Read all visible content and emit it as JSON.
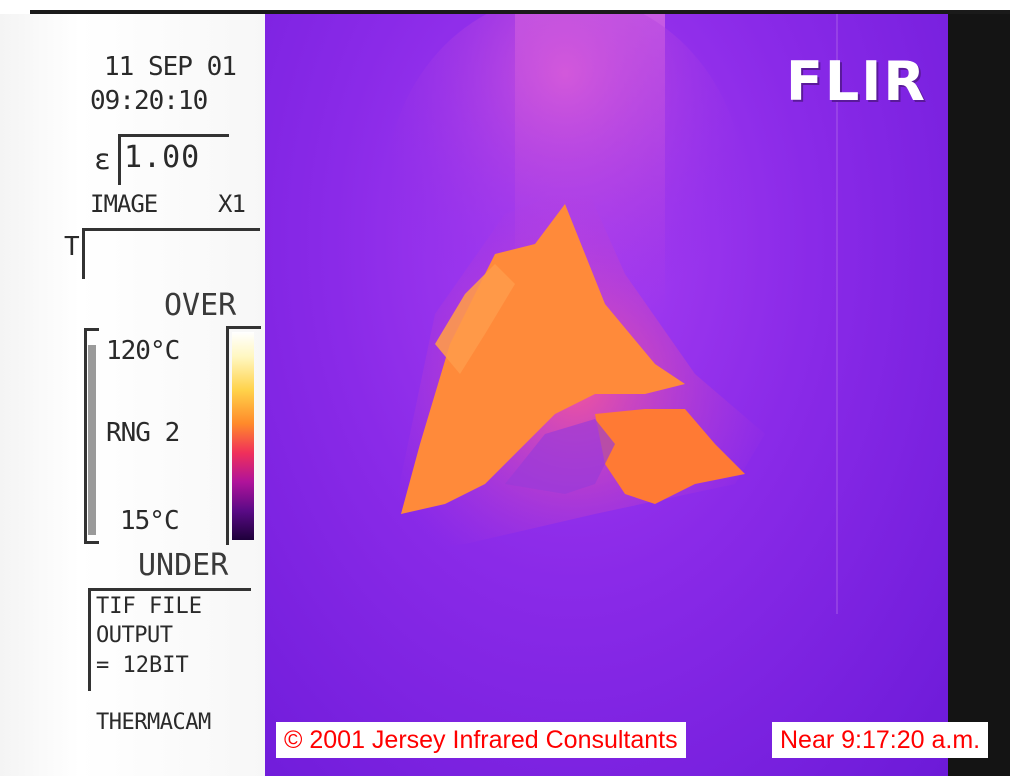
{
  "overlay": {
    "date": "11 SEP 01",
    "time": "09:20:10",
    "emissivity_symbol": "ε",
    "emissivity_value": "1.00",
    "image_label": "IMAGE",
    "zoom_label": "X1",
    "t_label": "T",
    "over_label": "OVER",
    "range_max": "120°C",
    "range_label": "RNG 2",
    "range_min": "15°C",
    "under_label": "UNDER",
    "file_output": {
      "line1": "TIF FILE",
      "line2": "OUTPUT",
      "line3": "= 12BIT"
    },
    "camera_model": "THERMACAM"
  },
  "brand": {
    "logo": "FLIR"
  },
  "captions": {
    "copyright": "© 2001 Jersey Infrared Consultants",
    "timestamp": "Near 9:17:20 a.m."
  },
  "colors": {
    "background_purple": "#8a2ae8",
    "hot_orange": "#ff8a3a",
    "caption_red": "#ff0000"
  }
}
